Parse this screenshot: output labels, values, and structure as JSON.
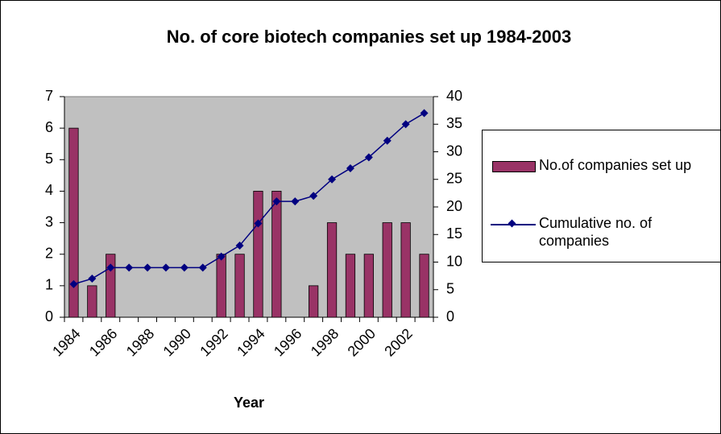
{
  "chart_data": {
    "type": "bar-line",
    "title": "No. of core biotech companies set up 1984-2003",
    "x_label": "Year",
    "categories": [
      "1984",
      null,
      "1986",
      null,
      "1988",
      null,
      "1990",
      null,
      "1992",
      null,
      "1994",
      null,
      "1996",
      null,
      "1998",
      null,
      "2000",
      null,
      "2002",
      null
    ],
    "series": [
      {
        "name": "No.of companies set up",
        "type": "bar",
        "color": "#993366",
        "axis": "y",
        "values": [
          6,
          1,
          2,
          0,
          0,
          0,
          0,
          0,
          2,
          2,
          4,
          4,
          0,
          1,
          3,
          2,
          2,
          3,
          3,
          2
        ]
      },
      {
        "name": "Cumulative no. of companies",
        "type": "line",
        "color": "#000080",
        "axis": "y2",
        "values": [
          6,
          7,
          9,
          9,
          9,
          9,
          9,
          9,
          11,
          13,
          17,
          21,
          21,
          22,
          25,
          27,
          29,
          32,
          35,
          37
        ]
      }
    ],
    "ylim": [
      0,
      7
    ],
    "yticks": [
      0,
      1,
      2,
      3,
      4,
      5,
      6,
      7
    ],
    "y2lim": [
      0,
      40
    ],
    "y2ticks": [
      0,
      5,
      10,
      15,
      20,
      25,
      30,
      35,
      40
    ],
    "grid": false,
    "legend": "right",
    "plot_background": "#c0c0c0"
  }
}
